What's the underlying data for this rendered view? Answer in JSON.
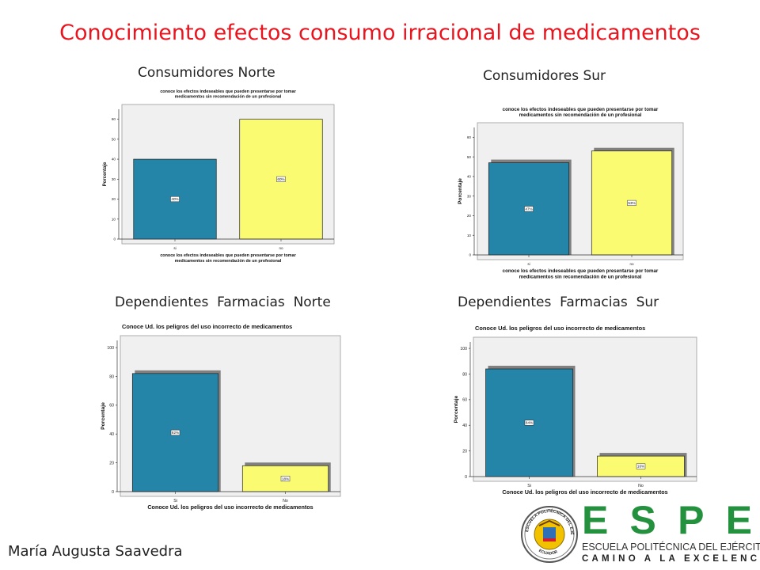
{
  "slide": {
    "title": "Conocimiento efectos consumo irracional de medicamentos",
    "author": "María Augusta Saavedra",
    "panel_labels": {
      "consumidores_norte": "Consumidores Norte",
      "consumidores_sur": "Consumidores Sur",
      "dependientes_norte": "Dependientes  Farmacias  Norte",
      "dependientes_sur": "Dependientes  Farmacias  Sur"
    }
  },
  "logo": {
    "letters": [
      "E",
      "S",
      "P",
      "E"
    ],
    "line1": "ESCUELA POLITÉCNICA DEL EJÉRCITO",
    "line2": "CAMINO A LA EXCELENCIA",
    "seal_text": "ESCUELA POLITÉCNICA DEL EJÉRCITO",
    "seal_country": "ECUADOR",
    "green": "#23913e"
  },
  "colors": {
    "bar_si": "#2485a8",
    "bar_no": "#fbfb71",
    "title": "#e8141e",
    "plot_bg": "#f0f0f0"
  },
  "chart_data": [
    {
      "type": "bar",
      "title": "conoce los efectos indeseables que pueden presentarse por tomar medicamentos sin recomendación de un profesional",
      "categories": [
        "si",
        "no"
      ],
      "values": [
        40,
        60
      ],
      "data_labels": [
        "40%",
        "60%"
      ],
      "xlabel": "conoce los efectos indeseables que pueden presentarse por tomar medicamentos sin recomendación de un profesional",
      "ylabel": "Porcentaje",
      "ylim": [
        0,
        65
      ],
      "yticks": [
        0,
        10,
        20,
        30,
        40,
        50,
        60
      ],
      "shadow": false
    },
    {
      "type": "bar",
      "title": "conoce los efectos indeseables que pueden presentarse por tomar medicamentos sin recomendación de un profesional",
      "categories": [
        "si",
        "no"
      ],
      "values": [
        47,
        53
      ],
      "data_labels": [
        "47%",
        "53%"
      ],
      "xlabel": "conoce los efectos indeseables que pueden presentarse por tomar medicamentos sin recomendación de un profesional",
      "ylabel": "Porcentaje",
      "ylim": [
        0,
        65
      ],
      "yticks": [
        0,
        10,
        20,
        30,
        40,
        50,
        60
      ],
      "shadow": true
    },
    {
      "type": "bar",
      "title": "Conoce Ud. los peligros del uso incorrecto de medicamentos",
      "categories": [
        "Si",
        "No"
      ],
      "values": [
        82,
        18
      ],
      "data_labels": [
        "82%",
        "18%"
      ],
      "xlabel": "Conoce Ud. los peligros del uso incorrecto de medicamentos",
      "ylabel": "Porcentaje",
      "ylim": [
        0,
        105
      ],
      "yticks": [
        0,
        20,
        40,
        60,
        80,
        100
      ],
      "shadow": true
    },
    {
      "type": "bar",
      "title": "Conoce Ud. los peligros del uso incorrecto de medicamentos",
      "categories": [
        "Si",
        "No"
      ],
      "values": [
        84,
        16
      ],
      "data_labels": [
        "84%",
        "16%"
      ],
      "xlabel": "Conoce Ud. los peligros del uso incorrecto de medicamentos",
      "ylabel": "Porcentaje",
      "ylim": [
        0,
        105
      ],
      "yticks": [
        0,
        20,
        40,
        60,
        80,
        100
      ],
      "shadow": true
    }
  ]
}
